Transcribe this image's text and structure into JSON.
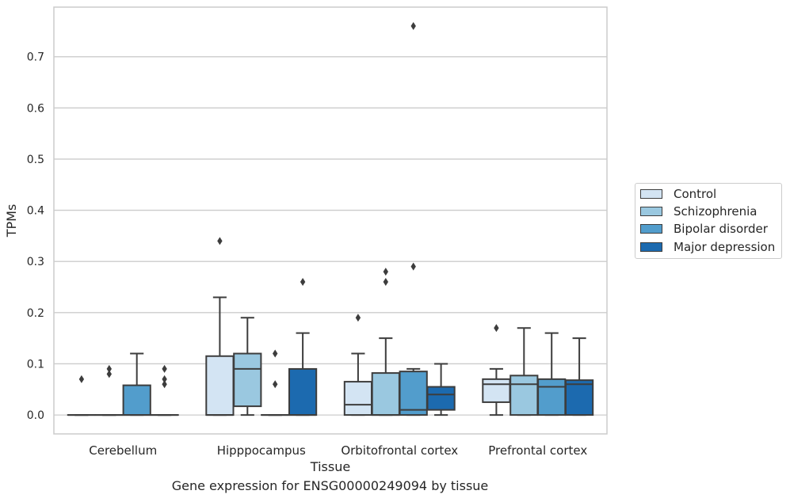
{
  "chart_data": {
    "type": "box",
    "xlabel": "Tissue",
    "ylabel": "TPMs",
    "caption": "Gene expression for ENSG00000249094 by tissue",
    "ylim": [
      -0.037,
      0.797
    ],
    "yticks": [
      0.0,
      0.1,
      0.2,
      0.3,
      0.4,
      0.5,
      0.6,
      0.7
    ],
    "ytick_labels": [
      "0.0",
      "0.1",
      "0.2",
      "0.3",
      "0.4",
      "0.5",
      "0.6",
      "0.7"
    ],
    "categories": [
      "Cerebellum",
      "Hipppocampus",
      "Orbitofrontal cortex",
      "Prefrontal cortex"
    ],
    "grid": "horizontal",
    "legend_position": "right",
    "series": [
      {
        "name": "Control",
        "color": "#d3e4f3",
        "boxes": [
          {
            "q1": 0.0,
            "median": 0.0,
            "q3": 0.0,
            "whislo": 0.0,
            "whishi": 0.0,
            "fliers": [
              0.07
            ]
          },
          {
            "q1": 0.0,
            "median": 0.0,
            "q3": 0.115,
            "whislo": 0.0,
            "whishi": 0.23,
            "fliers": [
              0.34
            ]
          },
          {
            "q1": 0.0,
            "median": 0.02,
            "q3": 0.065,
            "whislo": 0.0,
            "whishi": 0.12,
            "fliers": [
              0.19
            ]
          },
          {
            "q1": 0.025,
            "median": 0.06,
            "q3": 0.07,
            "whislo": 0.0,
            "whishi": 0.09,
            "fliers": [
              0.17
            ]
          }
        ]
      },
      {
        "name": "Schizophrenia",
        "color": "#9ac8e0",
        "boxes": [
          {
            "q1": 0.0,
            "median": 0.0,
            "q3": 0.0,
            "whislo": 0.0,
            "whishi": 0.0,
            "fliers": [
              0.08,
              0.09
            ]
          },
          {
            "q1": 0.017,
            "median": 0.09,
            "q3": 0.12,
            "whislo": 0.0,
            "whishi": 0.19,
            "fliers": []
          },
          {
            "q1": 0.0,
            "median": 0.0,
            "q3": 0.082,
            "whislo": 0.0,
            "whishi": 0.15,
            "fliers": [
              0.26,
              0.28
            ]
          },
          {
            "q1": 0.0,
            "median": 0.06,
            "q3": 0.077,
            "whislo": 0.0,
            "whishi": 0.17,
            "fliers": []
          }
        ]
      },
      {
        "name": "Bipolar disorder",
        "color": "#529dcc",
        "boxes": [
          {
            "q1": 0.0,
            "median": 0.0,
            "q3": 0.058,
            "whislo": 0.0,
            "whishi": 0.12,
            "fliers": []
          },
          {
            "q1": 0.0,
            "median": 0.0,
            "q3": 0.0,
            "whislo": 0.0,
            "whishi": 0.0,
            "fliers": [
              0.06,
              0.12
            ]
          },
          {
            "q1": 0.0,
            "median": 0.01,
            "q3": 0.085,
            "whislo": 0.0,
            "whishi": 0.09,
            "fliers": [
              0.29,
              0.76
            ]
          },
          {
            "q1": 0.0,
            "median": 0.055,
            "q3": 0.07,
            "whislo": 0.0,
            "whishi": 0.16,
            "fliers": []
          }
        ]
      },
      {
        "name": "Major depression",
        "color": "#1c6aaf",
        "boxes": [
          {
            "q1": 0.0,
            "median": 0.0,
            "q3": 0.0,
            "whislo": 0.0,
            "whishi": 0.0,
            "fliers": [
              0.06,
              0.07,
              0.09
            ]
          },
          {
            "q1": 0.0,
            "median": 0.0,
            "q3": 0.09,
            "whislo": 0.0,
            "whishi": 0.16,
            "fliers": [
              0.26
            ]
          },
          {
            "q1": 0.01,
            "median": 0.04,
            "q3": 0.055,
            "whislo": 0.0,
            "whishi": 0.1,
            "fliers": []
          },
          {
            "q1": 0.0,
            "median": 0.06,
            "q3": 0.068,
            "whislo": 0.0,
            "whishi": 0.15,
            "fliers": []
          }
        ]
      }
    ]
  }
}
